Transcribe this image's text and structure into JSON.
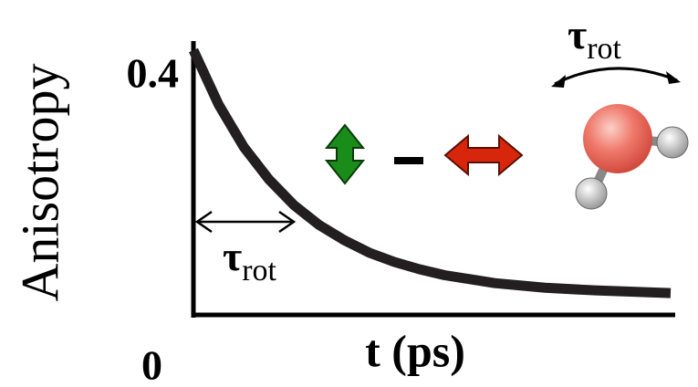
{
  "chart_data": {
    "type": "line",
    "y_label": "Anisotropy",
    "x_label": "t (ps)",
    "x": [
      0,
      0.25,
      0.5,
      0.75,
      1,
      1.25,
      1.5,
      1.75,
      2,
      2.25,
      2.5,
      2.75,
      3,
      3.5,
      4,
      4.75
    ],
    "series": [
      {
        "color": "#231f20",
        "values": [
          0.4,
          0.318,
          0.254,
          0.205,
          0.166,
          0.136,
          0.113,
          0.094,
          0.08,
          0.069,
          0.06,
          0.054,
          0.048,
          0.041,
          0.037,
          0.033
        ]
      }
    ],
    "xlim": [
      0,
      4.75
    ],
    "ylim": [
      0,
      0.4
    ],
    "yticks": [
      0,
      0.4
    ],
    "annotations": [
      {
        "symbol": "τ",
        "subscript": "rot"
      },
      {
        "symbol": "τ",
        "subscript": "rot"
      }
    ]
  }
}
